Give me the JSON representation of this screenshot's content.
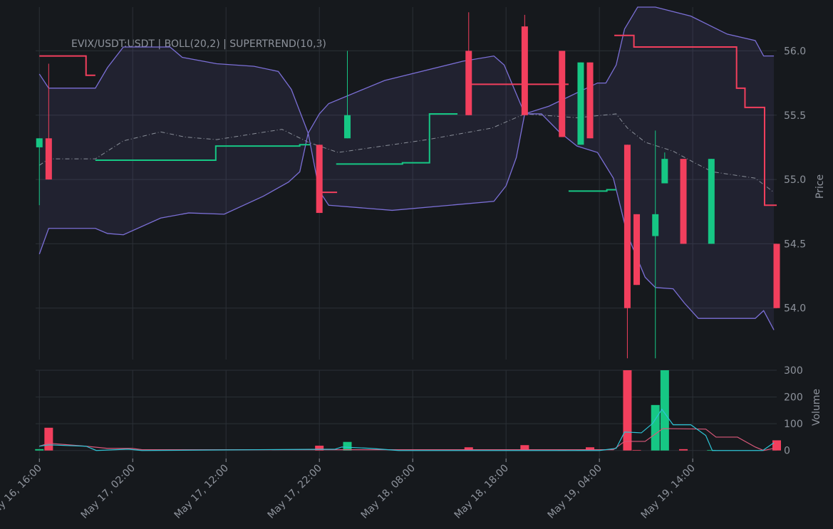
{
  "chart_data": [
    {
      "type": "candlestick",
      "title": "EVIX/USDT:USDT | BOLL(20,2) | SUPERTREND(10,3)",
      "y_label": "Price",
      "x": [
        0,
        1,
        30,
        33,
        46,
        52,
        56,
        58,
        59,
        63,
        64,
        66,
        67,
        69,
        72,
        79
      ],
      "open": [
        55.25,
        55.32,
        55.27,
        55.32,
        56.0,
        56.19,
        56.0,
        55.27,
        55.91,
        55.27,
        54.73,
        54.56,
        54.97,
        55.16,
        54.5,
        54.5
      ],
      "high": [
        55.32,
        55.9,
        55.27,
        56.0,
        56.3,
        56.28,
        56.0,
        55.91,
        55.91,
        55.27,
        54.73,
        55.38,
        55.21,
        55.16,
        55.16,
        54.5
      ],
      "low": [
        54.8,
        55.0,
        54.74,
        55.32,
        55.5,
        55.5,
        55.33,
        55.27,
        55.32,
        53.61,
        54.18,
        53.61,
        54.97,
        54.5,
        54.5,
        54.0
      ],
      "close": [
        55.32,
        55.0,
        54.74,
        55.5,
        55.5,
        55.5,
        55.33,
        55.91,
        55.32,
        54.0,
        54.18,
        54.73,
        55.16,
        54.5,
        55.16,
        54.0
      ],
      "up_color": "#16c784",
      "down_color": "#f23f5d",
      "xlim": [
        -0.4,
        79
      ],
      "ylim": [
        53.6,
        56.34
      ],
      "yticks": [
        {
          "value": 54,
          "label": "54.0"
        },
        {
          "value": 54.5,
          "label": "54.5"
        },
        {
          "value": 55,
          "label": "55.0"
        },
        {
          "value": 55.5,
          "label": "55.5"
        },
        {
          "value": 56,
          "label": "56.0"
        }
      ],
      "grid": true,
      "band_fill": "#7b6fd61c",
      "overlays": [
        {
          "color": "#7b6fd6",
          "style": "solid",
          "x": [
            0,
            1,
            6,
            7.3,
            9,
            14,
            15.3,
            19,
            23,
            25.6,
            27,
            28.8,
            30,
            31,
            37,
            45.4,
            48.7,
            49.8,
            52,
            54.6,
            59.8,
            60.7,
            61.8,
            62.7,
            64.1,
            66,
            69.8,
            73.7,
            76.7,
            77.6,
            78.7
          ],
          "values": [
            55.82,
            55.71,
            55.71,
            55.87,
            56.03,
            56.03,
            55.95,
            55.9,
            55.88,
            55.84,
            55.7,
            55.36,
            55.51,
            55.59,
            55.77,
            55.92,
            55.96,
            55.89,
            55.51,
            55.57,
            55.75,
            55.75,
            55.89,
            56.17,
            56.34,
            56.34,
            56.27,
            56.13,
            56.08,
            55.96,
            55.96
          ]
        },
        {
          "color": "#8a8f99",
          "style": "dashdot",
          "x": [
            0,
            1,
            6,
            9,
            13,
            15.6,
            19,
            26,
            28.8,
            32,
            41.6,
            48.5,
            52,
            57.6,
            61.8,
            63,
            64.9,
            67.9,
            70.2,
            72.1,
            76.7,
            78.7
          ],
          "values": [
            55.11,
            55.16,
            55.16,
            55.3,
            55.37,
            55.33,
            55.31,
            55.39,
            55.29,
            55.21,
            55.31,
            55.4,
            55.51,
            55.48,
            55.51,
            55.4,
            55.29,
            55.22,
            55.13,
            55.06,
            55.01,
            54.9
          ]
        },
        {
          "color": "#7b6fd6",
          "style": "solid",
          "x": [
            0,
            1,
            6,
            7.3,
            9,
            13,
            16,
            19.8,
            24,
            26.7,
            27.9,
            28.8,
            30,
            31,
            37.8,
            48.7,
            50,
            51.1,
            52,
            53.8,
            55.7,
            57.6,
            59.8,
            61.5,
            63,
            64.9,
            66,
            67.9,
            69.1,
            70.6,
            76.7,
            77.6,
            78.7
          ],
          "values": [
            54.42,
            54.62,
            54.62,
            54.58,
            54.57,
            54.7,
            54.74,
            54.73,
            54.87,
            54.98,
            55.06,
            55.36,
            54.91,
            54.8,
            54.76,
            54.83,
            54.95,
            55.17,
            55.51,
            55.51,
            55.37,
            55.26,
            55.21,
            55.01,
            54.57,
            54.24,
            54.16,
            54.15,
            54.04,
            53.92,
            53.92,
            53.98,
            53.83
          ]
        },
        {
          "color": "#f23f5d",
          "style": "thick",
          "x": [
            0,
            5,
            5,
            6,
            6.5,
            30.3,
            31.9,
            32,
            45.8,
            56.7,
            57,
            61.6,
            63.7,
            63.7,
            74.7,
            74.7,
            75.6,
            75.6,
            77.7,
            77.7,
            79
          ],
          "values": [
            55.96,
            55.96,
            55.81,
            55.81,
            null,
            54.9,
            54.9,
            null,
            55.74,
            55.74,
            null,
            56.12,
            56.12,
            56.03,
            56.03,
            55.71,
            55.71,
            55.56,
            55.56,
            54.8,
            54.8
          ]
        },
        {
          "color": "#16c784",
          "style": "thick",
          "x": [
            6,
            18.9,
            18.9,
            27.9,
            27.9,
            29,
            30,
            31.8,
            38.9,
            38.9,
            41.8,
            41.8,
            44.8,
            50,
            56.7,
            60.8,
            60.8,
            61.8
          ],
          "values": [
            55.15,
            55.15,
            55.26,
            55.26,
            55.27,
            55.27,
            null,
            55.12,
            55.12,
            55.13,
            55.13,
            55.51,
            55.51,
            null,
            54.91,
            54.91,
            54.92,
            54.92
          ]
        }
      ]
    },
    {
      "type": "bar",
      "y_label": "Volume",
      "values": [
        5,
        85,
        18,
        32,
        12,
        20,
        2,
        2,
        12,
        300,
        2,
        170,
        300,
        5,
        2,
        38
      ],
      "xticks": [
        {
          "value": 0,
          "label": "May 16, 16:00"
        },
        {
          "value": 10,
          "label": "May 17, 02:00"
        },
        {
          "value": 20,
          "label": "May 17, 12:00"
        },
        {
          "value": 30,
          "label": "May 17, 22:00"
        },
        {
          "value": 40,
          "label": "May 18, 08:00"
        },
        {
          "value": 50,
          "label": "May 18, 18:00"
        },
        {
          "value": 60,
          "label": "May 19, 04:00"
        },
        {
          "value": 70,
          "label": "May 19, 14:00"
        }
      ],
      "ylim": [
        -30,
        300
      ],
      "yticks": [
        0,
        100,
        200,
        300
      ],
      "grid": true,
      "overlays": [
        {
          "color": "#d9587a",
          "style": "thin",
          "x": [
            0,
            1,
            5,
            7.3,
            9.9,
            11,
            29,
            41.6,
            61.5,
            62.7,
            64.9,
            66.8,
            71.4,
            72.5,
            74.8,
            76.7,
            77.6,
            78.7
          ],
          "values": [
            16,
            27,
            16,
            8,
            8,
            3,
            3,
            3,
            3,
            34,
            34,
            82,
            80,
            50,
            50,
            13,
            0,
            8
          ]
        },
        {
          "color": "#2ec4d6",
          "style": "thin",
          "x": [
            0,
            1,
            5,
            6.1,
            9.5,
            11,
            31.7,
            32.4,
            35.5,
            38.5,
            60,
            61.8,
            62.7,
            64.5,
            65.7,
            66.7,
            67.9,
            69.8,
            71.4,
            72.1,
            77.5,
            78.7
          ],
          "values": [
            16,
            21,
            16,
            0,
            5,
            0,
            5,
            13,
            8,
            0,
            0,
            8,
            69,
            66,
            101,
            154,
            96,
            96,
            56,
            0,
            0,
            29
          ]
        }
      ]
    }
  ]
}
